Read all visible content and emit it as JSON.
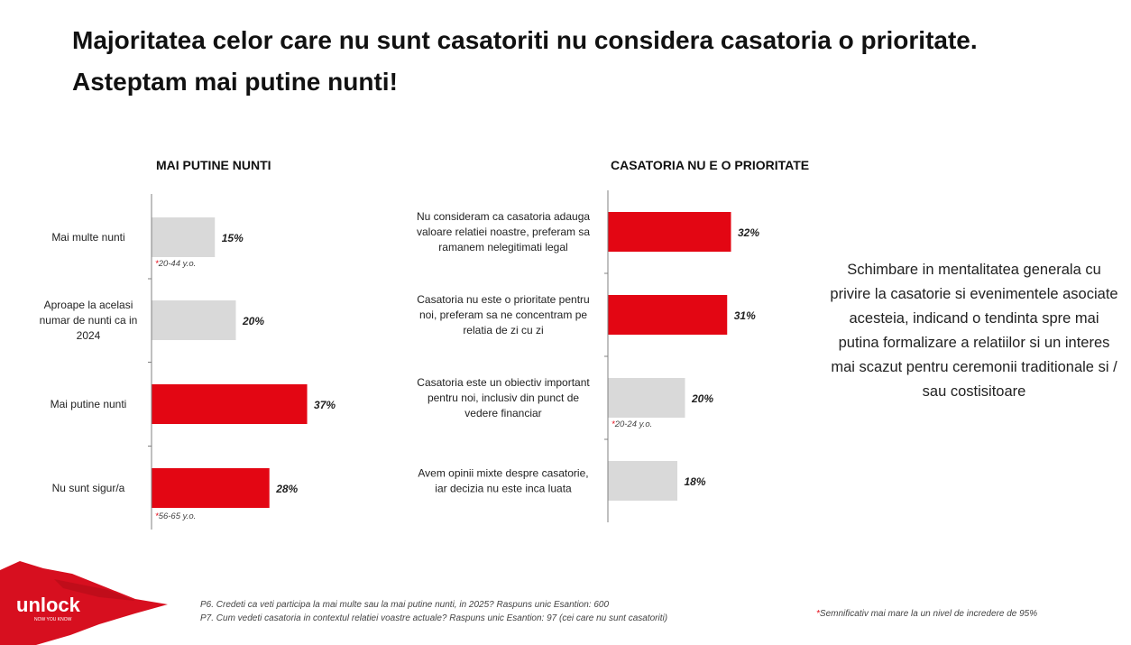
{
  "title": {
    "line1": "Majoritatea celor care nu sunt casatoriti nu considera casatoria o prioritate.",
    "line2": "Asteptam mai putine nunti!"
  },
  "chart_data": [
    {
      "type": "bar",
      "orientation": "horizontal",
      "title": "MAI PUTINE NUNTI",
      "categories": [
        "Mai multe nunti",
        "Aproape la acelasi numar de nunti ca in 2024",
        "Mai putine nunti",
        "Nu sunt sigur/a"
      ],
      "values": [
        15,
        20,
        37,
        28
      ],
      "value_labels": [
        "15%",
        "20%",
        "37%",
        "28%"
      ],
      "highlight": [
        false,
        false,
        true,
        true
      ],
      "annotations": [
        "20-44 y.o.",
        "",
        "",
        "56-65 y.o."
      ],
      "grid": false
    },
    {
      "type": "bar",
      "orientation": "horizontal",
      "title": "CASATORIA NU E O PRIORITATE",
      "categories": [
        "Nu consideram ca casatoria adauga valoare relatiei noastre, preferam sa ramanem nelegitimati legal",
        "Casatoria nu este o prioritate pentru noi, preferam sa ne concentram pe relatia de zi cu zi",
        "Casatoria este un obiectiv important pentru noi, inclusiv din punct de vedere financiar",
        "Avem opinii mixte despre casatorie, iar decizia nu este inca luata"
      ],
      "values": [
        32,
        31,
        20,
        18
      ],
      "value_labels": [
        "32%",
        "31%",
        "20%",
        "18%"
      ],
      "highlight": [
        true,
        true,
        false,
        false
      ],
      "annotations": [
        "",
        "",
        "20-24 y.o.",
        ""
      ],
      "grid": false
    }
  ],
  "side_note": "Schimbare in mentalitatea generala cu privire la casatorie si evenimentele asociate acesteia, indicand o tendinta spre mai putina formalizare a relatiilor si un interes mai scazut pentru ceremonii traditionale si / sau costisitoare",
  "footnotes": {
    "p6": "P6. Credeti ca veti participa la mai multe sau la mai putine nunti, in 2025? Raspuns unic   Esantion: 600",
    "p7": "P7. Cum vedeti casatoria in contextul relatiei voastre actuale? Raspuns unic   Esantion: 97 (cei care nu sunt casatoriti)"
  },
  "significance": {
    "star": "*",
    "text": "Semnificativ mai mare la un nivel de incredere de 95%"
  },
  "logo": {
    "text": "unlock",
    "tagline": "NOW YOU KNOW"
  },
  "colors": {
    "highlight": "#e30613",
    "neutral": "#d9d9d9",
    "star": "#e30613",
    "axis": "#808080"
  }
}
